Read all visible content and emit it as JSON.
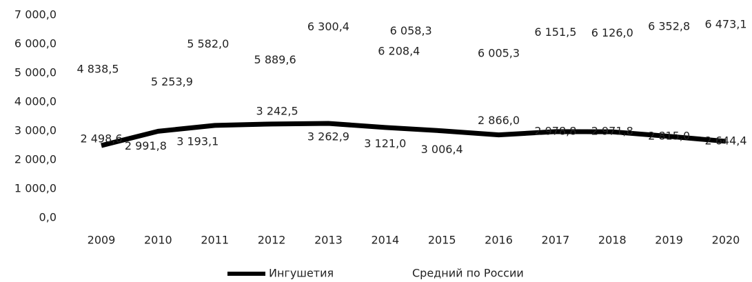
{
  "chart_data": {
    "type": "line",
    "categories": [
      "2009",
      "2010",
      "2011",
      "2012",
      "2013",
      "2014",
      "2015",
      "2016",
      "2017",
      "2018",
      "2019",
      "2020"
    ],
    "series": [
      {
        "name": "Ингушетия",
        "color": "#000000",
        "values": [
          2498.6,
          2991.8,
          3193.1,
          3242.5,
          3262.9,
          3121.0,
          3006.4,
          2866.0,
          2978.8,
          2971.8,
          2815.0,
          2644.4
        ],
        "value_labels": [
          "2 498,6",
          "2 991,8",
          "3 193,1",
          "3 242,5",
          "3 262,9",
          "3 121,0",
          "3 006,4",
          "2 866,0",
          "2 978,8",
          "2 971,8",
          "2 815,0",
          "2 644,4"
        ]
      },
      {
        "name": "Средний по России",
        "color": "#ffffff",
        "values": [
          4838.5,
          5253.9,
          5582.0,
          5889.6,
          6300.4,
          6208.4,
          6058.3,
          6005.3,
          6151.5,
          6126.0,
          6352.8,
          6473.1
        ],
        "value_labels": [
          "4 838,5",
          "5 253,9",
          "5 582,0",
          "5 889,6",
          "6 300,4",
          "6 208,4",
          "6 058,3",
          "6 005,3",
          "6 151,5",
          "6 126,0",
          "6 352,8",
          "6 473,1"
        ]
      }
    ],
    "ylim": [
      0,
      7000
    ],
    "yticks": [
      {
        "value": 0,
        "label": "0,0"
      },
      {
        "value": 1000,
        "label": "1 000,0"
      },
      {
        "value": 2000,
        "label": "2 000,0"
      },
      {
        "value": 3000,
        "label": "3 000,0"
      },
      {
        "value": 4000,
        "label": "4 000,0"
      },
      {
        "value": 5000,
        "label": "5 000,0"
      },
      {
        "value": 6000,
        "label": "6 000,0"
      },
      {
        "value": 7000,
        "label": "7 000,0"
      }
    ],
    "legend": "bottom"
  }
}
